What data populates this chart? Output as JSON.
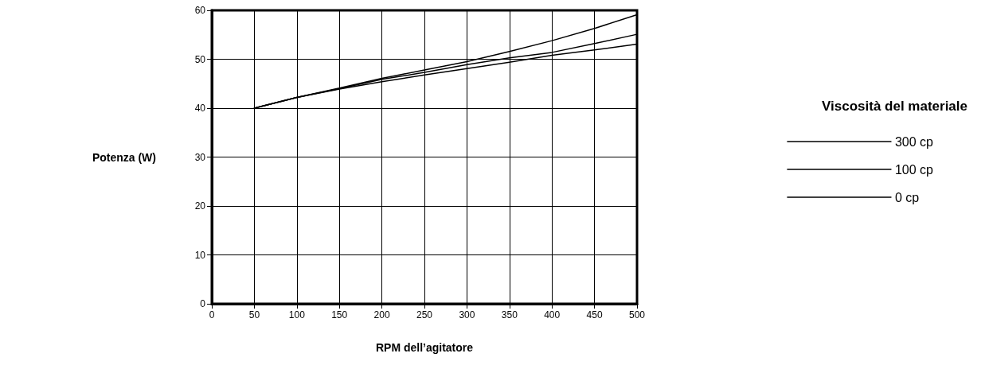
{
  "chart_data": {
    "type": "line",
    "xlabel": "RPM dell’agitatore",
    "ylabel": "Potenza (W)",
    "legend_title": "Viscosità del materiale",
    "legend": "right",
    "grid": true,
    "marker": "none",
    "xlim": [
      0,
      500
    ],
    "xticks": [
      0,
      50,
      100,
      150,
      200,
      250,
      300,
      350,
      400,
      450,
      500
    ],
    "ylim": [
      0,
      60
    ],
    "yticks": [
      0,
      10,
      20,
      30,
      40,
      50,
      60
    ],
    "x": [
      50,
      100,
      150,
      200,
      250,
      300,
      350,
      400,
      450,
      500
    ],
    "series": [
      {
        "name": "300 cp",
        "color": "#000000",
        "values": [
          40,
          42.2,
          44.1,
          46.1,
          47.8,
          49.5,
          51.6,
          53.8,
          56.3,
          59.1
        ]
      },
      {
        "name": "100 cp",
        "color": "#000000",
        "values": [
          40,
          42.2,
          44,
          45.9,
          47.3,
          48.9,
          50.3,
          51.4,
          53.2,
          55.1
        ]
      },
      {
        "name": "0 cp",
        "color": "#000000",
        "values": [
          40,
          42.2,
          43.9,
          45.4,
          46.8,
          48.1,
          49.4,
          50.8,
          51.9,
          53.1
        ]
      }
    ]
  }
}
